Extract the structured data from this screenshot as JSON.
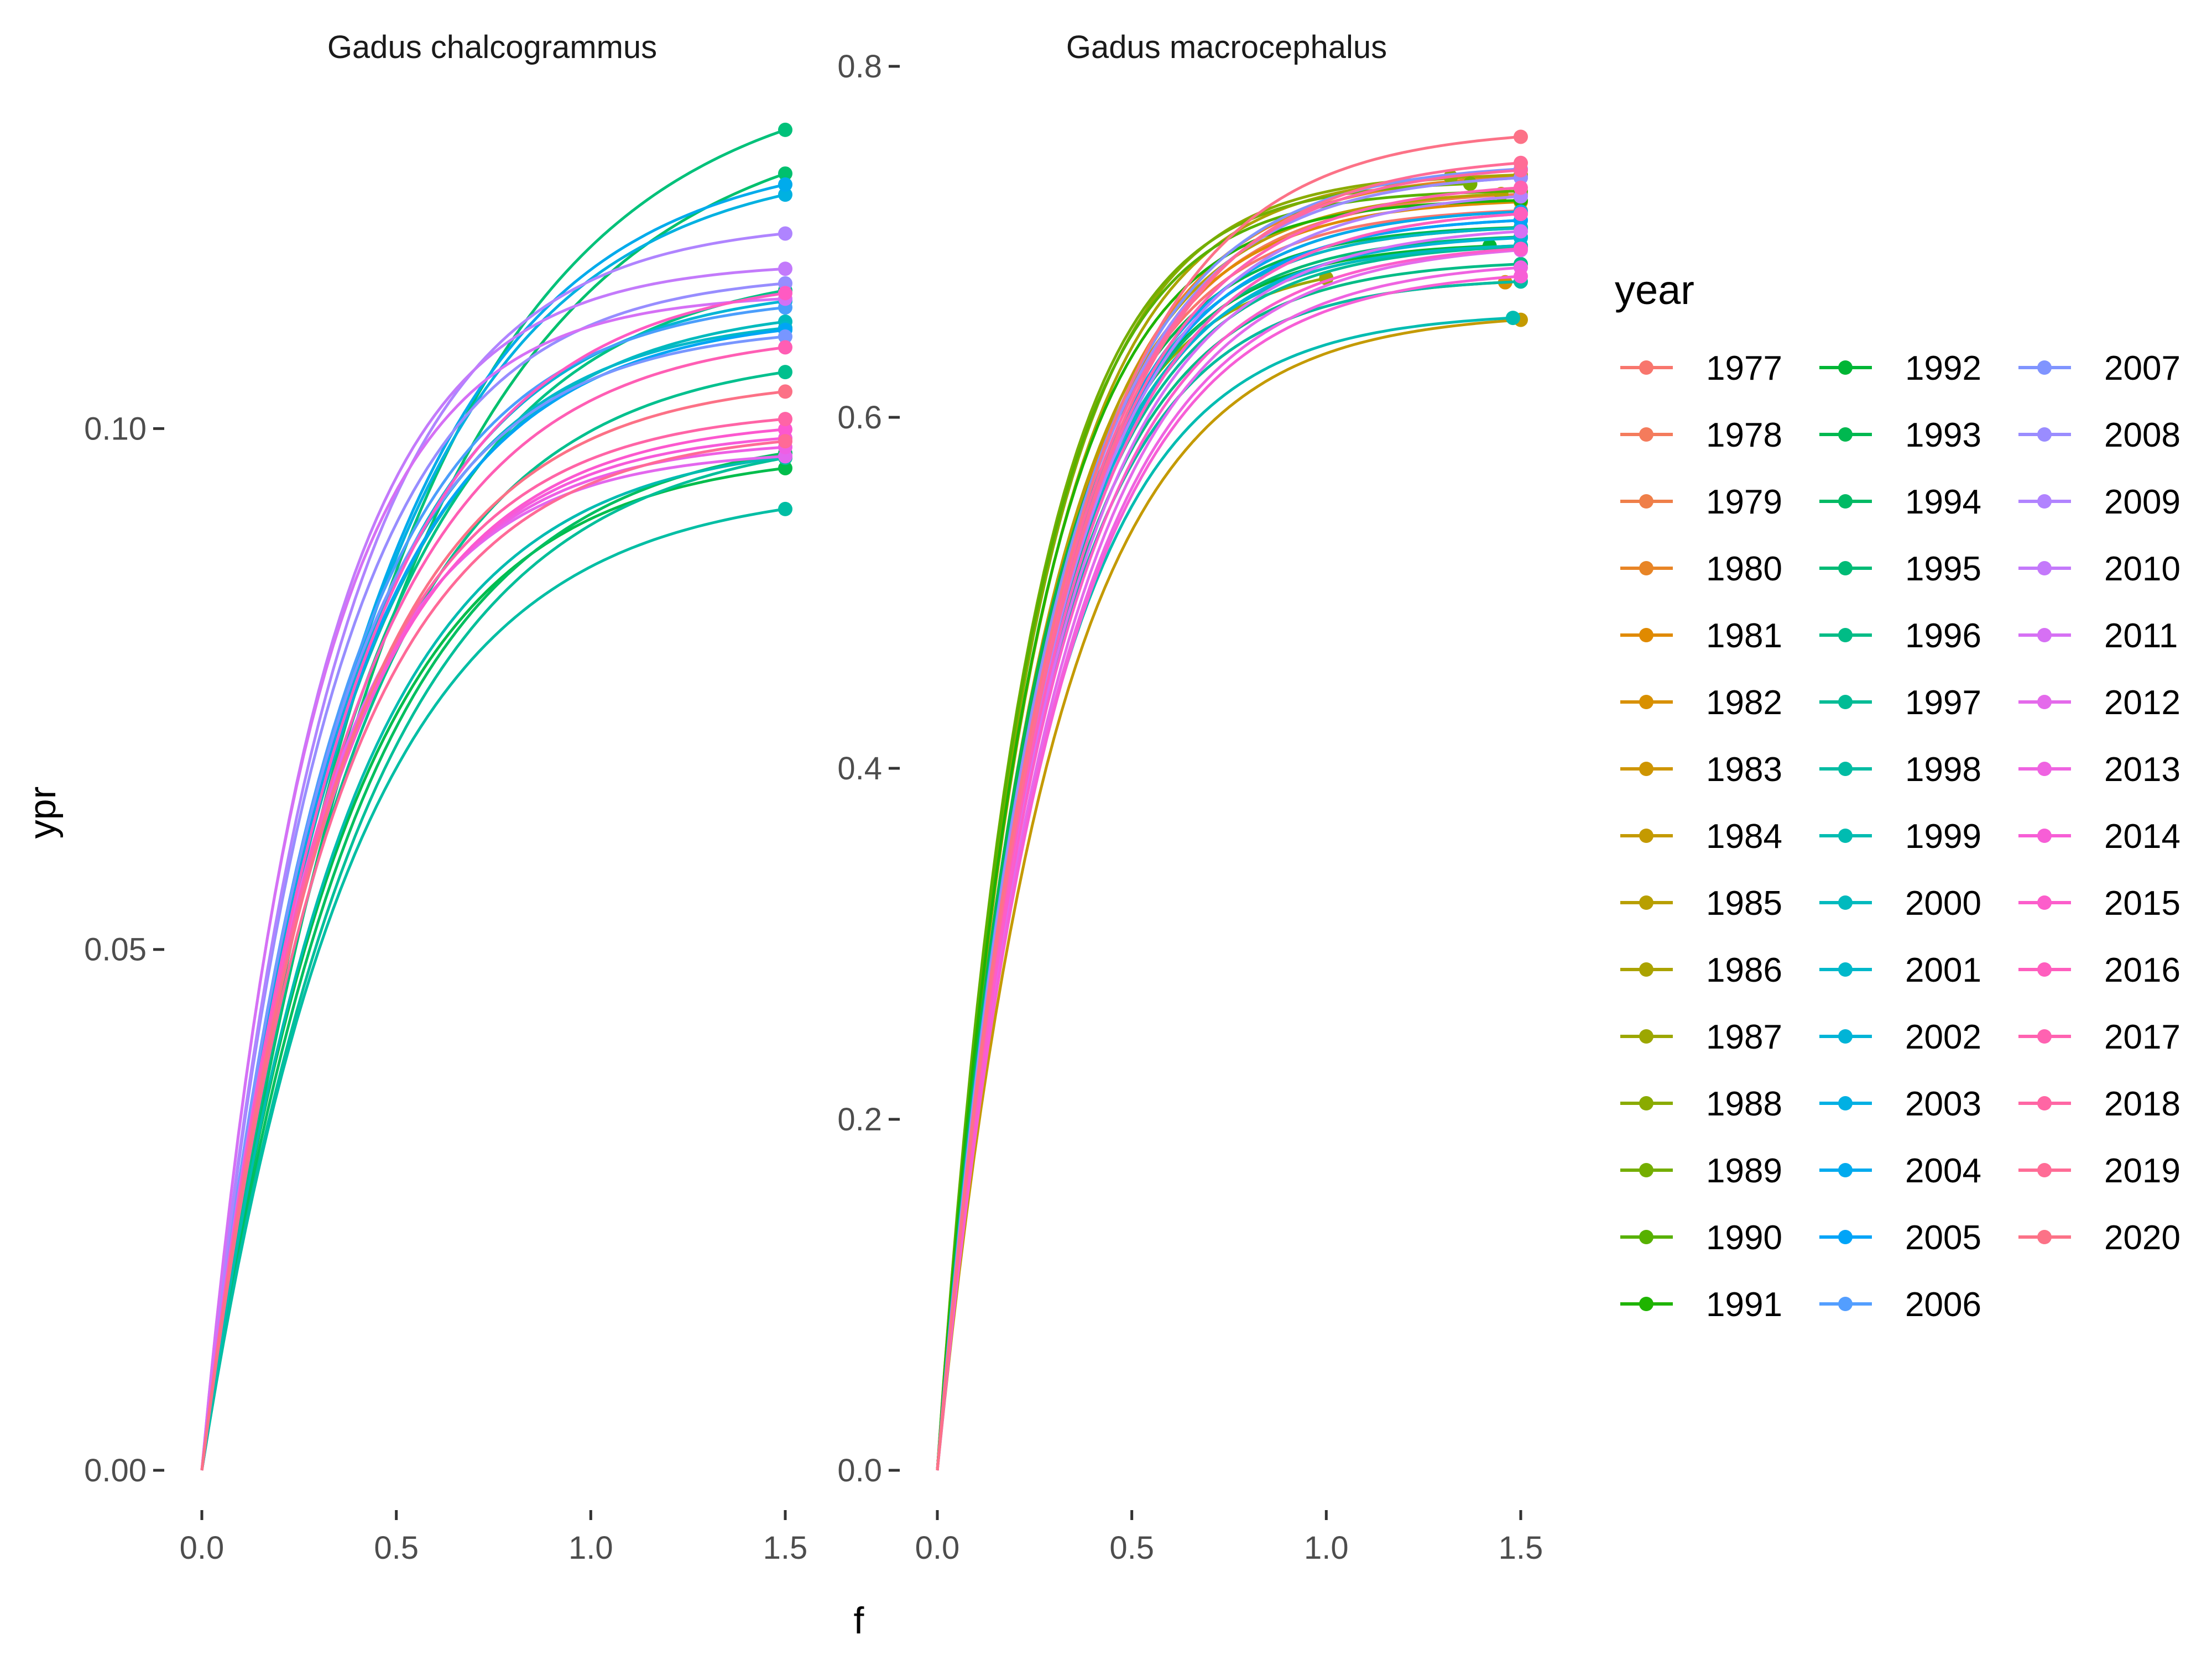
{
  "chart_data": [
    {
      "type": "line",
      "title": "Gadus chalcogrammus",
      "xlabel": "f",
      "ylabel": "ypr",
      "xlim": [
        0,
        1.5
      ],
      "ylim": [
        0,
        0.13
      ],
      "x_ticks": [
        0.0,
        0.5,
        1.0,
        1.5
      ],
      "x_tick_labels": [
        "0.0",
        "0.5",
        "1.0",
        "1.5"
      ],
      "y_ticks": [
        0.0,
        0.05,
        0.1
      ],
      "y_tick_labels": [
        "0.00",
        "0.05",
        "0.10"
      ],
      "curve_model": "ypr(f) = A * (1 - exp(-f / s)), plotted for f in [0, 1.5], point marker at f = 1.5",
      "series": [
        {
          "name": "1991",
          "color": "#00BD4C",
          "A": 0.0979,
          "s": 0.37
        },
        {
          "name": "1992",
          "color": "#00BF5F",
          "A": 0.1,
          "s": 0.4
        },
        {
          "name": "1993",
          "color": "#00C06E",
          "A": 0.131,
          "s": 0.5
        },
        {
          "name": "1994",
          "color": "#00C17A",
          "A": 0.135,
          "s": 0.49
        },
        {
          "name": "1995",
          "color": "#00C284",
          "A": 0.116,
          "s": 0.4
        },
        {
          "name": "1996",
          "color": "#00C08E",
          "A": 0.1075,
          "s": 0.38
        },
        {
          "name": "1997",
          "color": "#00BF99",
          "A": 0.1,
          "s": 0.42
        },
        {
          "name": "1998",
          "color": "#00BEA4",
          "A": 0.0945,
          "s": 0.4
        },
        {
          "name": "1999",
          "color": "#00BCB1",
          "A": 0.099,
          "s": 0.37
        },
        {
          "name": "2000",
          "color": "#00BABD",
          "A": 0.112,
          "s": 0.36
        },
        {
          "name": "2001",
          "color": "#00B8C9",
          "A": 0.111,
          "s": 0.34
        },
        {
          "name": "2002",
          "color": "#00B5D5",
          "A": 0.114,
          "s": 0.36
        },
        {
          "name": "2003",
          "color": "#00B1E1",
          "A": 0.126,
          "s": 0.42
        },
        {
          "name": "2004",
          "color": "#00ABEC",
          "A": 0.127,
          "s": 0.42
        },
        {
          "name": "2005",
          "color": "#00A5F5",
          "A": 0.111,
          "s": 0.35
        },
        {
          "name": "2006",
          "color": "#4B9EFC",
          "A": 0.113,
          "s": 0.34
        },
        {
          "name": "2007",
          "color": "#7896FF",
          "A": 0.11,
          "s": 0.33
        },
        {
          "name": "2008",
          "color": "#978DFF",
          "A": 0.115,
          "s": 0.32
        },
        {
          "name": "2009",
          "color": "#AF84FF",
          "A": 0.12,
          "s": 0.33
        },
        {
          "name": "2010",
          "color": "#C37AFB",
          "A": 0.116,
          "s": 0.29
        },
        {
          "name": "2011",
          "color": "#D570F5",
          "A": 0.113,
          "s": 0.28
        },
        {
          "name": "2012",
          "color": "#E367EE",
          "A": 0.098,
          "s": 0.3
        },
        {
          "name": "2013",
          "color": "#EE5FE4",
          "A": 0.099,
          "s": 0.31
        },
        {
          "name": "2014",
          "color": "#F65ADA",
          "A": 0.1,
          "s": 0.32
        },
        {
          "name": "2015",
          "color": "#FC58CF",
          "A": 0.101,
          "s": 0.33
        },
        {
          "name": "2016",
          "color": "#FF5AC2",
          "A": 0.115,
          "s": 0.37
        },
        {
          "name": "2017",
          "color": "#FF5EB4",
          "A": 0.1095,
          "s": 0.36
        },
        {
          "name": "2018",
          "color": "#FF64A6",
          "A": 0.102,
          "s": 0.33
        },
        {
          "name": "2019",
          "color": "#FF6A97",
          "A": 0.1,
          "s": 0.34
        },
        {
          "name": "2020",
          "color": "#FC7186",
          "A": 0.105,
          "s": 0.35
        }
      ]
    },
    {
      "type": "line",
      "title": "Gadus macrocephalus",
      "xlabel": "f",
      "ylabel": "ypr",
      "xlim": [
        0,
        1.5
      ],
      "ylim": [
        0,
        0.8
      ],
      "x_ticks": [
        0.0,
        0.5,
        1.0,
        1.5
      ],
      "x_tick_labels": [
        "0.0",
        "0.5",
        "1.0",
        "1.5"
      ],
      "y_ticks": [
        0.0,
        0.2,
        0.4,
        0.6,
        0.8
      ],
      "y_tick_labels": [
        "0.0",
        "0.2",
        "0.4",
        "0.6",
        "0.8"
      ],
      "curve_model": "ypr(f) = A * (1 - exp(-f / s)), plotted for f in [0, fmax], point marker at f = fmax",
      "series": [
        {
          "name": "1977",
          "color": "#F8766D",
          "A": 0.72,
          "s": 0.26,
          "fmax": 1.5
        },
        {
          "name": "1978",
          "color": "#F47B5C",
          "A": 0.73,
          "s": 0.27,
          "fmax": 1.5
        },
        {
          "name": "1979",
          "color": "#EF7F49",
          "A": 0.72,
          "s": 0.27,
          "fmax": 1.5
        },
        {
          "name": "1980",
          "color": "#E88526",
          "A": 0.74,
          "s": 0.27,
          "fmax": 1.5
        },
        {
          "name": "1981",
          "color": "#E08A00",
          "A": 0.725,
          "s": 0.26,
          "fmax": 1.5
        },
        {
          "name": "1982",
          "color": "#D89000",
          "A": 0.68,
          "s": 0.27,
          "fmax": 1.46
        },
        {
          "name": "1983",
          "color": "#CE9500",
          "A": 0.71,
          "s": 0.26,
          "fmax": 1.5
        },
        {
          "name": "1984",
          "color": "#C49A00",
          "A": 0.66,
          "s": 0.3,
          "fmax": 1.5
        },
        {
          "name": "1985",
          "color": "#B89F00",
          "A": 0.73,
          "s": 0.26,
          "fmax": 1.45
        },
        {
          "name": "1986",
          "color": "#ABA300",
          "A": 0.74,
          "s": 0.25,
          "fmax": 1.5
        },
        {
          "name": "1987",
          "color": "#9CA700",
          "A": 0.69,
          "s": 0.24,
          "fmax": 1.0
        },
        {
          "name": "1988",
          "color": "#8AAB00",
          "A": 0.74,
          "s": 0.24,
          "fmax": 1.32
        },
        {
          "name": "1989",
          "color": "#74AE00",
          "A": 0.735,
          "s": 0.23,
          "fmax": 1.37
        },
        {
          "name": "1990",
          "color": "#57B100",
          "A": 0.73,
          "s": 0.23,
          "fmax": 1.5
        },
        {
          "name": "1991",
          "color": "#1FB400",
          "A": 0.725,
          "s": 0.24,
          "fmax": 1.5
        },
        {
          "name": "1992",
          "color": "#00B635",
          "A": 0.7,
          "s": 0.25,
          "fmax": 1.42
        },
        {
          "name": "1993",
          "color": "#00B850",
          "A": 0.71,
          "s": 0.25,
          "fmax": 1.5
        },
        {
          "name": "1994",
          "color": "#00BA64",
          "A": 0.7,
          "s": 0.26,
          "fmax": 1.5
        },
        {
          "name": "1995",
          "color": "#00BB76",
          "A": 0.705,
          "s": 0.26,
          "fmax": 1.5
        },
        {
          "name": "1996",
          "color": "#00BC86",
          "A": 0.69,
          "s": 0.27,
          "fmax": 1.5
        },
        {
          "name": "1997",
          "color": "#00BC95",
          "A": 0.7,
          "s": 0.27,
          "fmax": 1.5
        },
        {
          "name": "1998",
          "color": "#00BCA3",
          "A": 0.68,
          "s": 0.27,
          "fmax": 1.5
        },
        {
          "name": "1999",
          "color": "#00BCB1",
          "A": 0.66,
          "s": 0.28,
          "fmax": 1.48
        },
        {
          "name": "2000",
          "color": "#00BABE",
          "A": 0.7,
          "s": 0.26,
          "fmax": 1.5
        },
        {
          "name": "2001",
          "color": "#00B8CA",
          "A": 0.71,
          "s": 0.26,
          "fmax": 1.5
        },
        {
          "name": "2002",
          "color": "#00B4D7",
          "A": 0.705,
          "s": 0.27,
          "fmax": 1.5
        },
        {
          "name": "2003",
          "color": "#00B0E3",
          "A": 0.715,
          "s": 0.27,
          "fmax": 1.5
        },
        {
          "name": "2004",
          "color": "#00AAEE",
          "A": 0.72,
          "s": 0.27,
          "fmax": 1.5
        },
        {
          "name": "2005",
          "color": "#00A4F8",
          "A": 0.715,
          "s": 0.27,
          "fmax": 1.5
        },
        {
          "name": "2006",
          "color": "#539EFF",
          "A": 0.74,
          "s": 0.28,
          "fmax": 1.5
        },
        {
          "name": "2007",
          "color": "#8094FF",
          "A": 0.745,
          "s": 0.28,
          "fmax": 1.5
        },
        {
          "name": "2008",
          "color": "#9A8CFF",
          "A": 0.74,
          "s": 0.28,
          "fmax": 1.5
        },
        {
          "name": "2009",
          "color": "#B183FF",
          "A": 0.73,
          "s": 0.29,
          "fmax": 1.5
        },
        {
          "name": "2010",
          "color": "#C479FB",
          "A": 0.72,
          "s": 0.29,
          "fmax": 1.5
        },
        {
          "name": "2011",
          "color": "#D670F4",
          "A": 0.71,
          "s": 0.29,
          "fmax": 1.5
        },
        {
          "name": "2012",
          "color": "#E46AEB",
          "A": 0.7,
          "s": 0.3,
          "fmax": 1.5
        },
        {
          "name": "2013",
          "color": "#EF63E1",
          "A": 0.69,
          "s": 0.3,
          "fmax": 1.5
        },
        {
          "name": "2014",
          "color": "#F75ED6",
          "A": 0.685,
          "s": 0.3,
          "fmax": 1.5
        },
        {
          "name": "2015",
          "color": "#FC5DCB",
          "A": 0.7,
          "s": 0.29,
          "fmax": 1.5
        },
        {
          "name": "2016",
          "color": "#FF5EBE",
          "A": 0.72,
          "s": 0.29,
          "fmax": 1.5
        },
        {
          "name": "2017",
          "color": "#FF62B1",
          "A": 0.735,
          "s": 0.29,
          "fmax": 1.5
        },
        {
          "name": "2018",
          "color": "#FF66A4",
          "A": 0.745,
          "s": 0.29,
          "fmax": 1.5
        },
        {
          "name": "2019",
          "color": "#FF6C96",
          "A": 0.75,
          "s": 0.3,
          "fmax": 1.5
        },
        {
          "name": "2020",
          "color": "#FC7287",
          "A": 0.765,
          "s": 0.3,
          "fmax": 1.5
        }
      ]
    }
  ],
  "legend": {
    "title": "year",
    "placement": "right",
    "columns": 3,
    "items": [
      {
        "label": "1977",
        "color": "#F8766D"
      },
      {
        "label": "1978",
        "color": "#F47B5C"
      },
      {
        "label": "1979",
        "color": "#EF7F49"
      },
      {
        "label": "1980",
        "color": "#E88526"
      },
      {
        "label": "1981",
        "color": "#E08A00"
      },
      {
        "label": "1982",
        "color": "#D89000"
      },
      {
        "label": "1983",
        "color": "#CE9500"
      },
      {
        "label": "1984",
        "color": "#C49A00"
      },
      {
        "label": "1985",
        "color": "#B89F00"
      },
      {
        "label": "1986",
        "color": "#ABA300"
      },
      {
        "label": "1987",
        "color": "#9CA700"
      },
      {
        "label": "1988",
        "color": "#8AAB00"
      },
      {
        "label": "1989",
        "color": "#74AE00"
      },
      {
        "label": "1990",
        "color": "#57B100"
      },
      {
        "label": "1991",
        "color": "#1FB400"
      },
      {
        "label": "1992",
        "color": "#00B635"
      },
      {
        "label": "1993",
        "color": "#00B850"
      },
      {
        "label": "1994",
        "color": "#00BA64"
      },
      {
        "label": "1995",
        "color": "#00BB76"
      },
      {
        "label": "1996",
        "color": "#00BC86"
      },
      {
        "label": "1997",
        "color": "#00BC95"
      },
      {
        "label": "1998",
        "color": "#00BCA3"
      },
      {
        "label": "1999",
        "color": "#00BCB1"
      },
      {
        "label": "2000",
        "color": "#00BABE"
      },
      {
        "label": "2001",
        "color": "#00B8CA"
      },
      {
        "label": "2002",
        "color": "#00B4D7"
      },
      {
        "label": "2003",
        "color": "#00B0E3"
      },
      {
        "label": "2004",
        "color": "#00AAEE"
      },
      {
        "label": "2005",
        "color": "#00A4F8"
      },
      {
        "label": "2006",
        "color": "#539EFF"
      },
      {
        "label": "2007",
        "color": "#8094FF"
      },
      {
        "label": "2008",
        "color": "#9A8CFF"
      },
      {
        "label": "2009",
        "color": "#B183FF"
      },
      {
        "label": "2010",
        "color": "#C479FB"
      },
      {
        "label": "2011",
        "color": "#D670F4"
      },
      {
        "label": "2012",
        "color": "#E46AEB"
      },
      {
        "label": "2013",
        "color": "#EF63E1"
      },
      {
        "label": "2014",
        "color": "#F75ED6"
      },
      {
        "label": "2015",
        "color": "#FC5DCB"
      },
      {
        "label": "2016",
        "color": "#FF5EBE"
      },
      {
        "label": "2017",
        "color": "#FF62B1"
      },
      {
        "label": "2018",
        "color": "#FF66A4"
      },
      {
        "label": "2019",
        "color": "#FF6C96"
      },
      {
        "label": "2020",
        "color": "#FC7287"
      }
    ]
  }
}
